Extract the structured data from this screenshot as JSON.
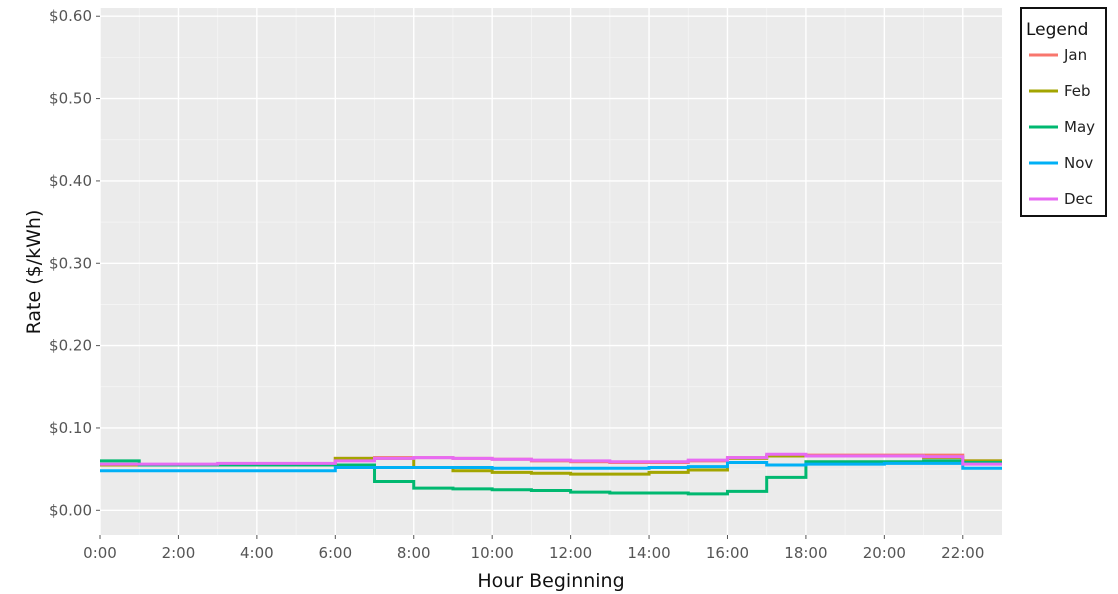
{
  "chart_data": {
    "type": "line",
    "step": true,
    "xlabel": "Hour Beginning",
    "ylabel": "Rate ($/kWh)",
    "x": [
      0,
      1,
      2,
      3,
      4,
      5,
      6,
      7,
      8,
      9,
      10,
      11,
      12,
      13,
      14,
      15,
      16,
      17,
      18,
      19,
      20,
      21,
      22,
      23
    ],
    "x_tick_values": [
      0,
      2,
      4,
      6,
      8,
      10,
      12,
      14,
      16,
      18,
      20,
      22
    ],
    "x_tick_labels": [
      "0:00",
      "2:00",
      "4:00",
      "6:00",
      "8:00",
      "10:00",
      "12:00",
      "14:00",
      "16:00",
      "18:00",
      "20:00",
      "22:00"
    ],
    "xlim": [
      0,
      23
    ],
    "ylim": [
      -0.03,
      0.61
    ],
    "y_tick_values": [
      0,
      0.1,
      0.2,
      0.3,
      0.4,
      0.5,
      0.6
    ],
    "y_tick_labels": [
      "$0.00",
      "$0.10",
      "$0.20",
      "$0.30",
      "$0.40",
      "$0.50",
      "$0.60"
    ],
    "grid": true,
    "background": "#ebebeb",
    "legend": {
      "title": "Legend",
      "position": "right"
    },
    "series": [
      {
        "name": "Jan",
        "color": "#f8766d",
        "values": [
          0.055,
          0.055,
          0.055,
          0.055,
          0.055,
          0.056,
          0.063,
          0.064,
          0.064,
          0.063,
          0.062,
          0.06,
          0.059,
          0.058,
          0.058,
          0.06,
          0.064,
          0.066,
          0.067,
          0.067,
          0.067,
          0.067,
          0.06,
          0.06
        ]
      },
      {
        "name": "Feb",
        "color": "#a3a500",
        "values": [
          0.055,
          0.055,
          0.055,
          0.055,
          0.055,
          0.056,
          0.063,
          0.063,
          0.052,
          0.048,
          0.046,
          0.045,
          0.044,
          0.044,
          0.046,
          0.049,
          0.063,
          0.066,
          0.066,
          0.066,
          0.066,
          0.064,
          0.06,
          0.06
        ]
      },
      {
        "name": "May",
        "color": "#00b870",
        "values": [
          0.06,
          0.055,
          0.055,
          0.055,
          0.055,
          0.055,
          0.055,
          0.035,
          0.027,
          0.026,
          0.025,
          0.024,
          0.022,
          0.021,
          0.021,
          0.02,
          0.023,
          0.04,
          0.059,
          0.059,
          0.059,
          0.06,
          0.058,
          0.058
        ]
      },
      {
        "name": "Nov",
        "color": "#00b0f6",
        "values": [
          0.048,
          0.048,
          0.048,
          0.048,
          0.048,
          0.048,
          0.052,
          0.052,
          0.052,
          0.052,
          0.051,
          0.051,
          0.051,
          0.051,
          0.052,
          0.053,
          0.058,
          0.055,
          0.056,
          0.056,
          0.057,
          0.057,
          0.051,
          0.051
        ]
      },
      {
        "name": "Dec",
        "color": "#e76bf3",
        "values": [
          0.056,
          0.056,
          0.056,
          0.057,
          0.057,
          0.057,
          0.06,
          0.063,
          0.064,
          0.063,
          0.062,
          0.061,
          0.06,
          0.059,
          0.059,
          0.061,
          0.064,
          0.068,
          0.066,
          0.066,
          0.066,
          0.065,
          0.056,
          0.056
        ]
      }
    ]
  }
}
